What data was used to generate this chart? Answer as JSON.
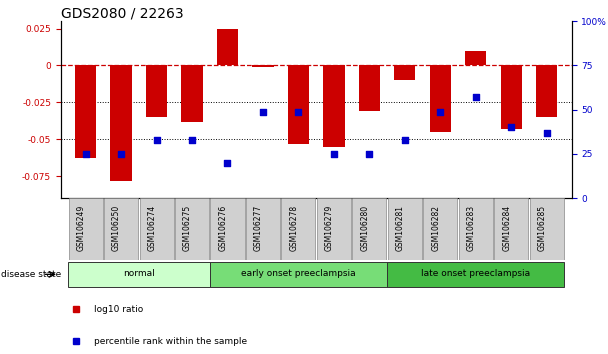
{
  "title": "GDS2080 / 22263",
  "samples": [
    "GSM106249",
    "GSM106250",
    "GSM106274",
    "GSM106275",
    "GSM106276",
    "GSM106277",
    "GSM106278",
    "GSM106279",
    "GSM106280",
    "GSM106281",
    "GSM106282",
    "GSM106283",
    "GSM106284",
    "GSM106285"
  ],
  "log10_ratio": [
    -0.063,
    -0.078,
    -0.035,
    -0.038,
    0.025,
    -0.001,
    -0.053,
    -0.055,
    -0.031,
    -0.01,
    -0.045,
    0.01,
    -0.043,
    -0.035
  ],
  "percentile_rank": [
    25,
    25,
    33,
    33,
    20,
    49,
    49,
    25,
    25,
    33,
    49,
    57,
    40,
    37
  ],
  "groups": [
    {
      "label": "normal",
      "start": 0,
      "end": 3,
      "color": "#ccffcc"
    },
    {
      "label": "early onset preeclampsia",
      "start": 4,
      "end": 8,
      "color": "#77dd77"
    },
    {
      "label": "late onset preeclampsia",
      "start": 9,
      "end": 13,
      "color": "#44bb44"
    }
  ],
  "bar_color": "#cc0000",
  "dot_color": "#0000cc",
  "left_ylim": [
    -0.09,
    0.03
  ],
  "left_yticks": [
    -0.075,
    -0.05,
    -0.025,
    0,
    0.025
  ],
  "right_ylim": [
    0,
    100
  ],
  "right_yticks": [
    0,
    25,
    50,
    75,
    100
  ],
  "right_yticklabels": [
    "0",
    "25",
    "50",
    "75",
    "100%"
  ],
  "hline_y": 0,
  "dotted_lines": [
    -0.025,
    -0.05
  ],
  "legend_items": [
    {
      "label": "log10 ratio",
      "color": "#cc0000"
    },
    {
      "label": "percentile rank within the sample",
      "color": "#0000cc"
    }
  ],
  "disease_state_label": "disease state",
  "title_fontsize": 10,
  "tick_fontsize": 6.5,
  "label_fontsize": 8
}
